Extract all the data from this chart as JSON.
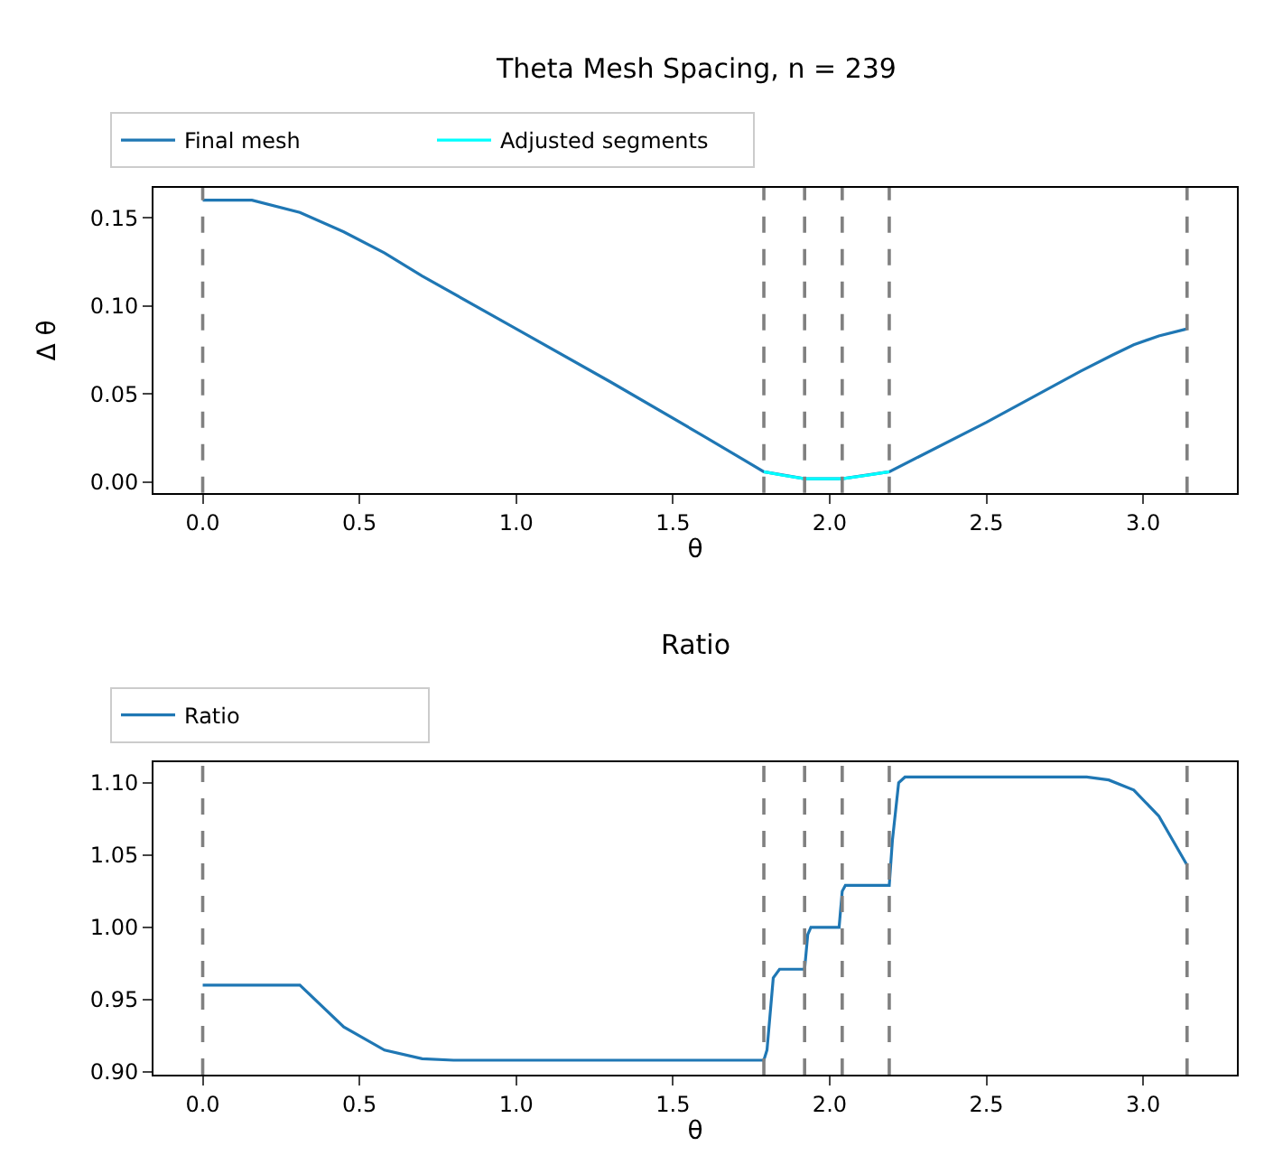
{
  "chart_data": [
    {
      "type": "line",
      "title": "Theta Mesh Spacing, n = 239",
      "xlabel": "θ",
      "ylabel": "Δ θ",
      "x": [
        0,
        0.157,
        0.31,
        0.45,
        0.58,
        0.7,
        1.0,
        1.3,
        1.6,
        1.79,
        1.92,
        2.04,
        2.19,
        2.5,
        2.8,
        2.9,
        2.97,
        3.05,
        3.14
      ],
      "series": [
        {
          "name": "Final mesh",
          "color": "#1f77b4",
          "values": [
            0.16,
            0.16,
            0.153,
            0.142,
            0.13,
            0.117,
            0.087,
            0.057,
            0.026,
            0.006,
            0.002,
            0.002,
            0.006,
            0.034,
            0.063,
            0.072,
            0.078,
            0.083,
            0.087
          ]
        },
        {
          "name": "Adjusted segments",
          "color": "#00ffff",
          "x": [
            1.79,
            1.85,
            1.92,
            1.98,
            2.04,
            2.12,
            2.19
          ],
          "values": [
            0.006,
            0.004,
            0.002,
            0.002,
            0.002,
            0.004,
            0.006
          ]
        }
      ],
      "xlim": [
        -0.157,
        3.299
      ],
      "xticks": [
        {
          "value": 0,
          "label": "0.0"
        },
        0.5,
        {
          "value": 1,
          "label": "1.0"
        },
        1.5,
        {
          "value": 2,
          "label": "2.0"
        },
        2.5,
        {
          "value": 3,
          "label": "3.0"
        }
      ],
      "ylim": [
        -0.006,
        0.167
      ],
      "yticks": [
        {
          "value": 0,
          "label": "0.00"
        },
        0.05,
        {
          "value": 0.1,
          "label": "0.10"
        },
        0.15
      ],
      "ref_lines": [
        {
          "axis": "x",
          "value": 0,
          "color": "#808080",
          "line_style": "dashed"
        },
        {
          "axis": "x",
          "value": 1.79,
          "color": "#808080",
          "line_style": "dashed"
        },
        {
          "axis": "x",
          "value": 1.92,
          "color": "#808080",
          "line_style": "dashed"
        },
        {
          "axis": "x",
          "value": 2.04,
          "color": "#808080",
          "line_style": "dashed"
        },
        {
          "axis": "x",
          "value": 2.19,
          "color": "#808080",
          "line_style": "dashed"
        },
        {
          "axis": "x",
          "value": 3.14,
          "color": "#808080",
          "line_style": "dashed"
        }
      ],
      "legend": "top",
      "marker": "none",
      "line_style": "solid"
    },
    {
      "type": "line",
      "title": "Ratio",
      "xlabel": "θ",
      "x": [
        0,
        0.31,
        0.45,
        0.58,
        0.7,
        0.8,
        1.79,
        1.8,
        1.82,
        1.84,
        1.92,
        1.93,
        1.94,
        2.03,
        2.04,
        2.05,
        2.19,
        2.2,
        2.22,
        2.24,
        2.82,
        2.89,
        2.97,
        3.05,
        3.14
      ],
      "series": [
        {
          "name": "Ratio",
          "color": "#1f77b4",
          "values": [
            0.96,
            0.96,
            0.931,
            0.915,
            0.909,
            0.908,
            0.908,
            0.915,
            0.965,
            0.971,
            0.971,
            0.995,
            1.0,
            1.0,
            1.025,
            1.029,
            1.029,
            1.06,
            1.1,
            1.104,
            1.104,
            1.102,
            1.095,
            1.077,
            1.043
          ]
        }
      ],
      "xlim": [
        -0.157,
        3.299
      ],
      "xticks": [
        {
          "value": 0,
          "label": "0.0"
        },
        0.5,
        {
          "value": 1,
          "label": "1.0"
        },
        1.5,
        {
          "value": 2,
          "label": "2.0"
        },
        2.5,
        {
          "value": 3,
          "label": "3.0"
        }
      ],
      "ylim": [
        0.898,
        1.114
      ],
      "yticks": [
        {
          "value": 0.9,
          "label": "0.90"
        },
        0.95,
        {
          "value": 1,
          "label": "1.00"
        },
        1.05,
        {
          "value": 1.1,
          "label": "1.10"
        }
      ],
      "ref_lines": [
        {
          "axis": "x",
          "value": 0,
          "color": "#808080",
          "line_style": "dashed"
        },
        {
          "axis": "x",
          "value": 1.79,
          "color": "#808080",
          "line_style": "dashed"
        },
        {
          "axis": "x",
          "value": 1.92,
          "color": "#808080",
          "line_style": "dashed"
        },
        {
          "axis": "x",
          "value": 2.04,
          "color": "#808080",
          "line_style": "dashed"
        },
        {
          "axis": "x",
          "value": 2.19,
          "color": "#808080",
          "line_style": "dashed"
        },
        {
          "axis": "x",
          "value": 3.14,
          "color": "#808080",
          "line_style": "dashed"
        }
      ],
      "legend": "top",
      "marker": "none",
      "line_style": "solid"
    }
  ]
}
